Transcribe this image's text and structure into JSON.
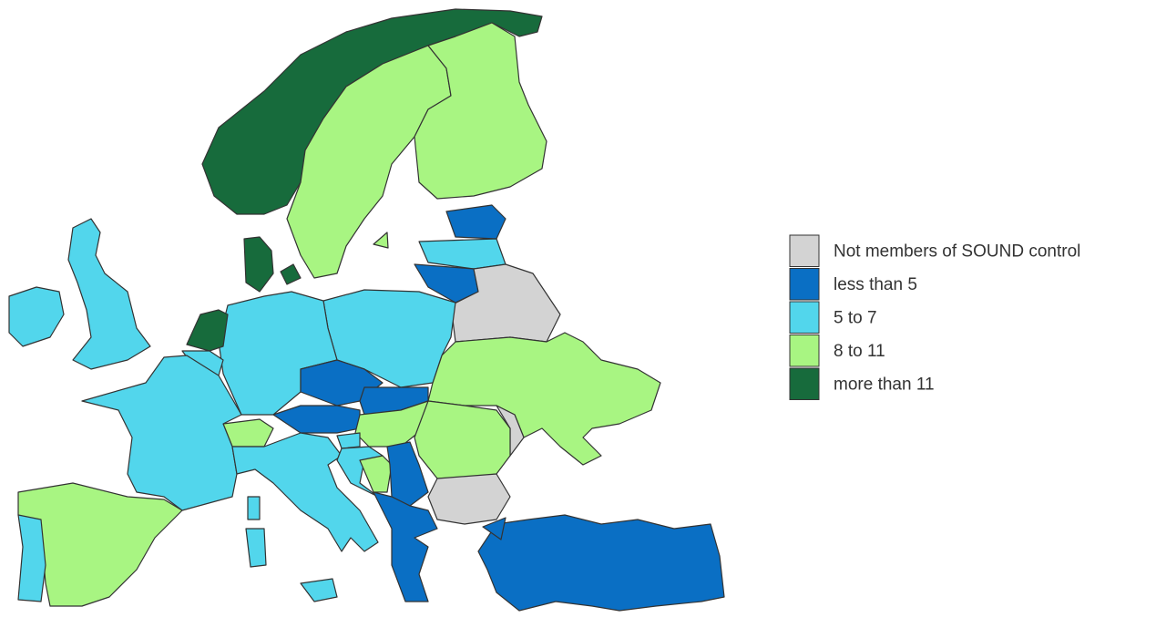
{
  "legend": {
    "items": [
      {
        "label": "Not members of SOUND control",
        "color": "#d3d3d3"
      },
      {
        "label": "less than 5",
        "color": "#0a6fc4"
      },
      {
        "label": "5 to 7",
        "color": "#52d6ec"
      },
      {
        "label": "8 to 11",
        "color": "#a8f582"
      },
      {
        "label": "more than 11",
        "color": "#176b3c"
      }
    ]
  }
}
